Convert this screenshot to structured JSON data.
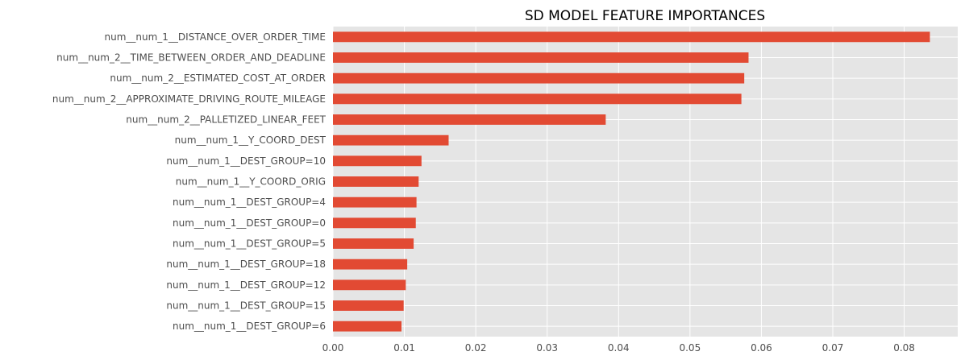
{
  "chart_data": {
    "type": "bar",
    "orientation": "horizontal",
    "title": "SD MODEL FEATURE IMPORTANCES",
    "xlabel": "",
    "ylabel": "",
    "xlim": [
      0,
      0.0875
    ],
    "xticks": [
      "0.00",
      "0.01",
      "0.02",
      "0.03",
      "0.04",
      "0.05",
      "0.06",
      "0.07",
      "0.08"
    ],
    "grid": true,
    "legend": "none",
    "colors": {
      "bar": "#e24a33",
      "background": "#e5e5e5",
      "grid": "#ffffff"
    },
    "categories": [
      "num__num_1__DISTANCE_OVER_ORDER_TIME",
      "num__num_2__TIME_BETWEEN_ORDER_AND_DEADLINE",
      "num__num_2__ESTIMATED_COST_AT_ORDER",
      "num__num_2__APPROXIMATE_DRIVING_ROUTE_MILEAGE",
      "num__num_2__PALLETIZED_LINEAR_FEET",
      "num__num_1__Y_COORD_DEST",
      "num__num_1__DEST_GROUP=10",
      "num__num_1__Y_COORD_ORIG",
      "num__num_1__DEST_GROUP=4",
      "num__num_1__DEST_GROUP=0",
      "num__num_1__DEST_GROUP=5",
      "num__num_1__DEST_GROUP=18",
      "num__num_1__DEST_GROUP=12",
      "num__num_1__DEST_GROUP=15",
      "num__num_1__DEST_GROUP=6"
    ],
    "values": [
      0.0836,
      0.0582,
      0.0576,
      0.0572,
      0.0382,
      0.0162,
      0.0124,
      0.012,
      0.0117,
      0.0116,
      0.0113,
      0.0104,
      0.0102,
      0.0099,
      0.0096
    ]
  }
}
